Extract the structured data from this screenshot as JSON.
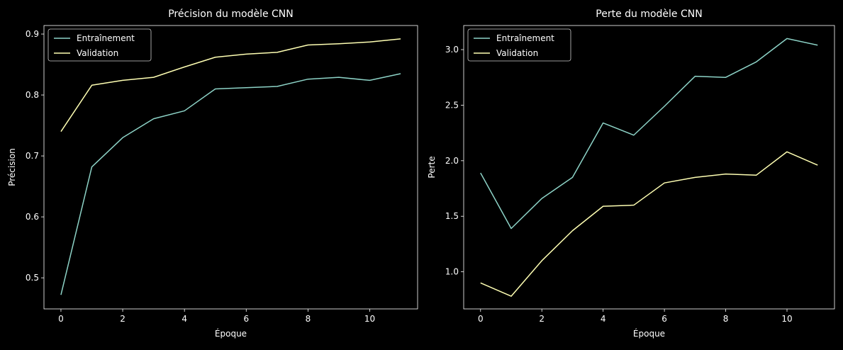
{
  "chart_data": [
    {
      "type": "line",
      "title": "Précision du modèle CNN",
      "xlabel": "Époque",
      "ylabel": "Précision",
      "xlim": [
        -0.55,
        11.55
      ],
      "ylim": [
        0.449,
        0.914
      ],
      "xticks": [
        0,
        2,
        4,
        6,
        8,
        10
      ],
      "yticks": [
        0.5,
        0.6,
        0.7,
        0.8,
        0.9
      ],
      "ytick_decimals": 1,
      "grid": false,
      "legend": "top-left",
      "x": [
        0,
        1,
        2,
        3,
        4,
        5,
        6,
        7,
        8,
        9,
        10,
        11
      ],
      "series": [
        {
          "name": "Entraînement",
          "color": "#8dd3c7",
          "values": [
            0.472,
            0.682,
            0.73,
            0.761,
            0.774,
            0.81,
            0.812,
            0.814,
            0.826,
            0.829,
            0.824,
            0.835
          ]
        },
        {
          "name": "Validation",
          "color": "#ffffb3",
          "values": [
            0.74,
            0.816,
            0.824,
            0.829,
            0.846,
            0.862,
            0.867,
            0.87,
            0.882,
            0.884,
            0.887,
            0.892
          ]
        }
      ]
    },
    {
      "type": "line",
      "title": "Perte du modèle CNN",
      "xlabel": "Époque",
      "ylabel": "Perte",
      "xlim": [
        -0.55,
        11.55
      ],
      "ylim": [
        0.666,
        3.217
      ],
      "xticks": [
        0,
        2,
        4,
        6,
        8,
        10
      ],
      "yticks": [
        1.0,
        1.5,
        2.0,
        2.5,
        3.0
      ],
      "ytick_decimals": 1,
      "grid": false,
      "legend": "top-left",
      "x": [
        0,
        1,
        2,
        3,
        4,
        5,
        6,
        7,
        8,
        9,
        10,
        11
      ],
      "series": [
        {
          "name": "Entraînement",
          "color": "#8dd3c7",
          "values": [
            1.89,
            1.39,
            1.66,
            1.85,
            2.34,
            2.23,
            2.49,
            2.76,
            2.75,
            2.89,
            3.1,
            3.04
          ]
        },
        {
          "name": "Validation",
          "color": "#ffffb3",
          "values": [
            0.9,
            0.78,
            1.1,
            1.37,
            1.59,
            1.6,
            1.8,
            1.85,
            1.88,
            1.87,
            2.08,
            1.96
          ]
        }
      ]
    }
  ]
}
